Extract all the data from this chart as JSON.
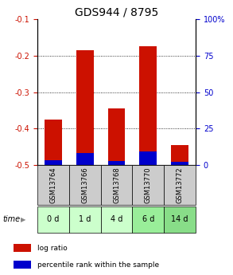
{
  "title": "GDS944 / 8795",
  "samples": [
    "GSM13764",
    "GSM13766",
    "GSM13768",
    "GSM13770",
    "GSM13772"
  ],
  "time_labels": [
    "0 d",
    "1 d",
    "4 d",
    "6 d",
    "14 d"
  ],
  "log_ratios": [
    -0.375,
    -0.185,
    -0.345,
    -0.175,
    -0.445
  ],
  "percentile_ranks": [
    3.5,
    8.0,
    2.5,
    9.5,
    2.0
  ],
  "ylim_left": [
    -0.5,
    -0.1
  ],
  "ylim_right": [
    0,
    100
  ],
  "yticks_left": [
    -0.5,
    -0.4,
    -0.3,
    -0.2,
    -0.1
  ],
  "yticks_right": [
    0,
    25,
    50,
    75,
    100
  ],
  "bar_width": 0.55,
  "bar_color_red": "#cc1100",
  "bar_color_blue": "#0000cc",
  "left_yaxis_color": "#cc1100",
  "right_yaxis_color": "#0000cc",
  "gsm_box_color": "#cccccc",
  "time_box_colors": [
    "#ccffcc",
    "#ccffcc",
    "#ccffcc",
    "#99ee99",
    "#88dd88"
  ],
  "time_row_label": "time",
  "legend_log_ratio": "log ratio",
  "legend_percentile": "percentile rank within the sample",
  "title_fontsize": 10,
  "tick_fontsize": 7,
  "label_fontsize": 7,
  "gsm_label_fontsize": 6,
  "time_label_fontsize": 7,
  "gridline_y": [
    -0.2,
    -0.3,
    -0.4
  ]
}
